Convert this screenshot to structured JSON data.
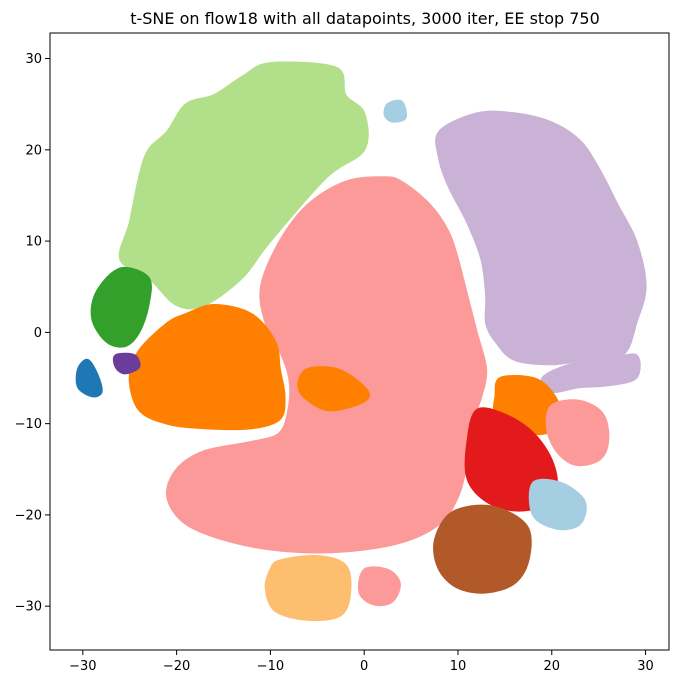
{
  "chart_data": {
    "type": "scatter",
    "title": "t-SNE on flow18 with all datapoints, 3000 iter, EE stop 750",
    "xlabel": "",
    "ylabel": "",
    "xlim": [
      -33.5,
      32.5
    ],
    "ylim": [
      -34.8,
      32.8
    ],
    "x_ticks": [
      "−30",
      "−20",
      "−10",
      "0",
      "10",
      "20",
      "30"
    ],
    "x_tick_values": [
      -30,
      -20,
      -10,
      0,
      10,
      20,
      30
    ],
    "y_ticks": [
      "30",
      "20",
      "10",
      "0",
      "−10",
      "−20",
      "−30"
    ],
    "y_tick_values": [
      30,
      20,
      10,
      0,
      -10,
      -20,
      -30
    ],
    "grid": false,
    "legend": "none",
    "palette": "Paired",
    "clusters": [
      {
        "color": "#b2df8a",
        "outline": [
          [
            -10,
            29.5
          ],
          [
            -3,
            29
          ],
          [
            -2,
            26
          ],
          [
            0,
            24
          ],
          [
            0,
            20
          ],
          [
            -4,
            17
          ],
          [
            -10,
            10
          ],
          [
            -13,
            6
          ],
          [
            -17,
            3
          ],
          [
            -20,
            3
          ],
          [
            -23,
            6
          ],
          [
            -26,
            8
          ],
          [
            -25,
            12
          ],
          [
            -24,
            17
          ],
          [
            -23,
            20
          ],
          [
            -21,
            22
          ],
          [
            -19,
            25
          ],
          [
            -16,
            26
          ],
          [
            -13,
            28
          ]
        ]
      },
      {
        "color": "#fb9a99",
        "outline": [
          [
            2,
            17
          ],
          [
            4,
            16.5
          ],
          [
            7,
            14
          ],
          [
            9,
            11
          ],
          [
            10,
            8
          ],
          [
            11,
            4
          ],
          [
            12,
            0
          ],
          [
            13,
            -4
          ],
          [
            12.5,
            -7
          ],
          [
            11.5,
            -10
          ],
          [
            11,
            -14
          ],
          [
            10,
            -18
          ],
          [
            8,
            -21
          ],
          [
            4,
            -23
          ],
          [
            -2,
            -24
          ],
          [
            -8,
            -24
          ],
          [
            -14,
            -23
          ],
          [
            -19,
            -21
          ],
          [
            -21,
            -18
          ],
          [
            -20,
            -15
          ],
          [
            -17,
            -13
          ],
          [
            -12,
            -12
          ],
          [
            -9,
            -11
          ],
          [
            -8,
            -8
          ],
          [
            -8,
            -5
          ],
          [
            -9,
            -2
          ],
          [
            -10.5,
            1
          ],
          [
            -11,
            5
          ],
          [
            -9,
            10
          ],
          [
            -6,
            14
          ],
          [
            -2,
            16.5
          ]
        ]
      },
      {
        "color": "#cab2d6",
        "outline": [
          [
            8,
            22
          ],
          [
            12,
            24
          ],
          [
            16,
            24
          ],
          [
            20,
            23
          ],
          [
            23,
            21
          ],
          [
            25,
            18
          ],
          [
            27,
            14
          ],
          [
            29,
            10
          ],
          [
            30,
            5
          ],
          [
            29,
            1
          ],
          [
            28,
            -2
          ],
          [
            26,
            -3.5
          ],
          [
            24,
            -3
          ],
          [
            20,
            -3.5
          ],
          [
            16,
            -3
          ],
          [
            14,
            -1
          ],
          [
            13,
            1
          ],
          [
            13,
            4
          ],
          [
            12.5,
            8
          ],
          [
            11,
            12
          ],
          [
            9,
            16
          ],
          [
            8,
            19
          ]
        ]
      },
      {
        "color": "#cab2d6",
        "outline": [
          [
            19,
            -5
          ],
          [
            22,
            -3.5
          ],
          [
            26,
            -3
          ],
          [
            29,
            -2.5
          ],
          [
            29,
            -5
          ],
          [
            26,
            -5.8
          ],
          [
            23,
            -6
          ],
          [
            20,
            -6.5
          ]
        ]
      },
      {
        "color": "#ff7f00",
        "outline": [
          [
            -16,
            3
          ],
          [
            -12,
            2
          ],
          [
            -9.5,
            -1
          ],
          [
            -9,
            -4
          ],
          [
            -8.5,
            -7
          ],
          [
            -9,
            -9.5
          ],
          [
            -12,
            -10.5
          ],
          [
            -17,
            -10.5
          ],
          [
            -21,
            -10
          ],
          [
            -24,
            -8.5
          ],
          [
            -25,
            -5
          ],
          [
            -24,
            -2
          ],
          [
            -21,
            1
          ],
          [
            -19,
            2
          ]
        ]
      },
      {
        "color": "#ff7f00",
        "outline": [
          [
            -6,
            -4
          ],
          [
            -3,
            -4
          ],
          [
            -0.5,
            -5.5
          ],
          [
            0.5,
            -7
          ],
          [
            -1,
            -8
          ],
          [
            -4,
            -8.5
          ],
          [
            -6.5,
            -7
          ],
          [
            -7,
            -5.5
          ]
        ]
      },
      {
        "color": "#ff7f00",
        "outline": [
          [
            14.5,
            -5
          ],
          [
            18,
            -5
          ],
          [
            20,
            -6.5
          ],
          [
            21,
            -9
          ],
          [
            19.5,
            -11
          ],
          [
            16,
            -10.8
          ],
          [
            14,
            -9
          ],
          [
            14,
            -7
          ]
        ]
      },
      {
        "color": "#fb9a99",
        "outline": [
          [
            20,
            -8
          ],
          [
            23,
            -7.5
          ],
          [
            25.5,
            -9
          ],
          [
            26,
            -12
          ],
          [
            25,
            -14
          ],
          [
            22.5,
            -14.5
          ],
          [
            20.5,
            -13
          ],
          [
            19.5,
            -10.5
          ]
        ]
      },
      {
        "color": "#e31a1c",
        "outline": [
          [
            12,
            -8.5
          ],
          [
            15,
            -9
          ],
          [
            18,
            -11
          ],
          [
            20,
            -14
          ],
          [
            20.5,
            -17
          ],
          [
            19,
            -19
          ],
          [
            16,
            -19.5
          ],
          [
            13,
            -18.5
          ],
          [
            11,
            -16
          ],
          [
            11,
            -12
          ]
        ]
      },
      {
        "color": "#a6cee3",
        "outline": [
          [
            18,
            -16.5
          ],
          [
            21,
            -16.5
          ],
          [
            23.5,
            -18.5
          ],
          [
            23,
            -21
          ],
          [
            20.5,
            -21.5
          ],
          [
            18,
            -20
          ]
        ]
      },
      {
        "color": "#b15928",
        "outline": [
          [
            9,
            -20
          ],
          [
            12,
            -19
          ],
          [
            15,
            -19.5
          ],
          [
            17.5,
            -21.5
          ],
          [
            17.5,
            -25
          ],
          [
            16,
            -27.5
          ],
          [
            13,
            -28.5
          ],
          [
            10,
            -28
          ],
          [
            8,
            -26
          ],
          [
            7.5,
            -23
          ]
        ]
      },
      {
        "color": "#33a02c",
        "outline": [
          [
            -28.5,
            4.5
          ],
          [
            -26,
            7
          ],
          [
            -23,
            6
          ],
          [
            -23,
            3
          ],
          [
            -24,
            0
          ],
          [
            -25.5,
            -1.5
          ],
          [
            -27.5,
            -1
          ],
          [
            -29,
            1.5
          ]
        ]
      },
      {
        "color": "#1f78b4",
        "outline": [
          [
            -30.5,
            -4
          ],
          [
            -29.5,
            -3
          ],
          [
            -28.5,
            -4.5
          ],
          [
            -28,
            -6.5
          ],
          [
            -29,
            -7
          ],
          [
            -30.5,
            -6
          ]
        ]
      },
      {
        "color": "#6a3d9a",
        "outline": [
          [
            -26.5,
            -2.5
          ],
          [
            -24.5,
            -2.5
          ],
          [
            -24,
            -3.8
          ],
          [
            -25.5,
            -4.5
          ],
          [
            -26.5,
            -3.8
          ]
        ]
      },
      {
        "color": "#fdbf6f",
        "outline": [
          [
            -9,
            -25
          ],
          [
            -5,
            -24.5
          ],
          [
            -2,
            -25.5
          ],
          [
            -1.5,
            -28.5
          ],
          [
            -2.5,
            -31
          ],
          [
            -6,
            -31.5
          ],
          [
            -9.5,
            -30.5
          ],
          [
            -10.5,
            -28
          ],
          [
            -10,
            -26
          ]
        ]
      },
      {
        "color": "#fb9a99",
        "outline": [
          [
            0,
            -26
          ],
          [
            2.5,
            -26
          ],
          [
            3.8,
            -27.5
          ],
          [
            3,
            -29.5
          ],
          [
            1,
            -29.8
          ],
          [
            -0.5,
            -28.5
          ]
        ]
      },
      {
        "color": "#a6cee3",
        "outline": [
          [
            2.5,
            25
          ],
          [
            4,
            25.3
          ],
          [
            4.4,
            23.5
          ],
          [
            3,
            23.1
          ],
          [
            2.2,
            23.8
          ]
        ]
      }
    ]
  }
}
